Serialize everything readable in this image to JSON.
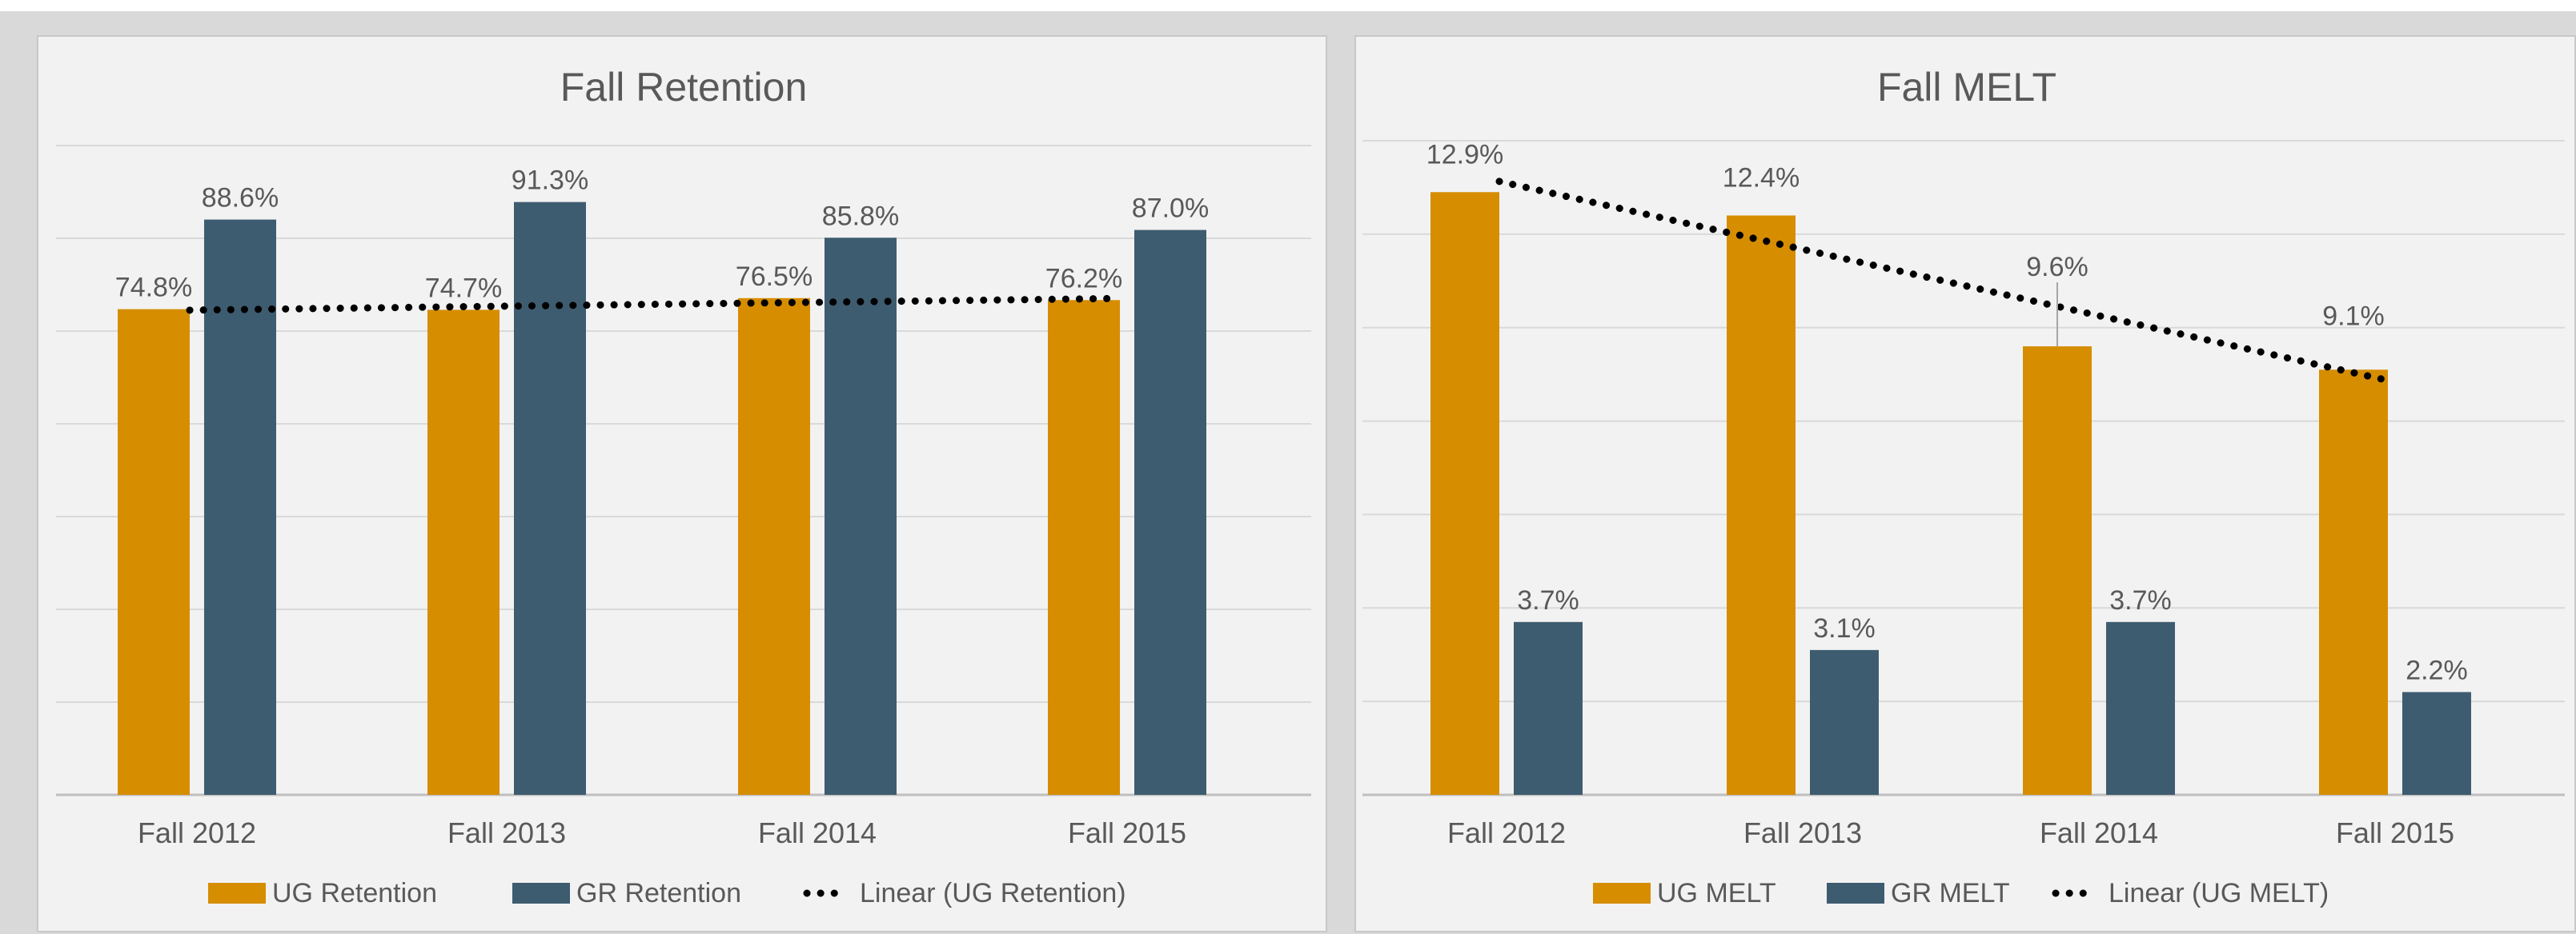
{
  "colors": {
    "ug": "#D68D00",
    "gr": "#3E5C70",
    "trend": "#000000",
    "grid": "#d9d9d9",
    "panel_bg": "#f2f2f2"
  },
  "chart_data": [
    {
      "type": "bar",
      "title": "Fall Retention",
      "categories": [
        "Fall 2012",
        "Fall 2013",
        "Fall 2014",
        "Fall 2015"
      ],
      "series": [
        {
          "name": "UG Retention",
          "values": [
            74.8,
            74.7,
            76.5,
            76.2
          ],
          "labels": [
            "74.8%",
            "74.7%",
            "76.5%",
            "76.2%"
          ],
          "color": "#D68D00"
        },
        {
          "name": "GR Retention",
          "values": [
            88.6,
            91.3,
            85.8,
            87.0
          ],
          "labels": [
            "88.6%",
            "91.3%",
            "85.8%",
            "87.0%"
          ],
          "color": "#3E5C70"
        }
      ],
      "trendline": {
        "name": "Linear (UG Retention)",
        "type": "linear",
        "of_series": "UG Retention",
        "style": "dotted"
      },
      "ylim": [
        0,
        100
      ],
      "gridlines": 7,
      "grid": true,
      "legend": "bottom",
      "xlabel": "",
      "ylabel": ""
    },
    {
      "type": "bar",
      "title": "Fall MELT",
      "categories": [
        "Fall 2012",
        "Fall 2013",
        "Fall 2014",
        "Fall 2015"
      ],
      "series": [
        {
          "name": "UG MELT",
          "values": [
            12.9,
            12.4,
            9.6,
            9.1
          ],
          "labels": [
            "12.9%",
            "12.4%",
            "9.6%",
            "9.1%"
          ],
          "color": "#D68D00"
        },
        {
          "name": "GR MELT",
          "values": [
            3.7,
            3.1,
            3.7,
            2.2
          ],
          "labels": [
            "3.7%",
            "3.1%",
            "3.7%",
            "2.2%"
          ],
          "color": "#3E5C70"
        }
      ],
      "trendline": {
        "name": "Linear (UG MELT)",
        "type": "linear",
        "of_series": "UG MELT",
        "style": "dotted"
      },
      "ylim": [
        0,
        14
      ],
      "gridlines": 7,
      "grid": true,
      "legend": "bottom",
      "xlabel": "",
      "ylabel": ""
    }
  ]
}
